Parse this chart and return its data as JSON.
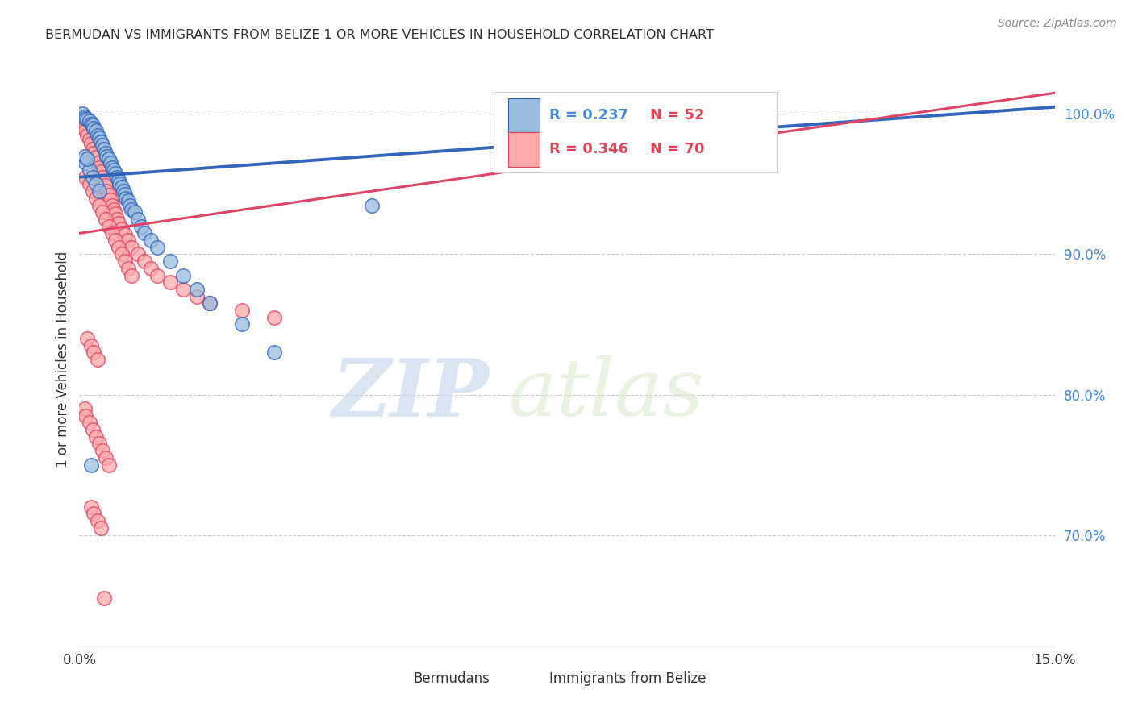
{
  "title": "BERMUDAN VS IMMIGRANTS FROM BELIZE 1 OR MORE VEHICLES IN HOUSEHOLD CORRELATION CHART",
  "source": "Source: ZipAtlas.com",
  "ylabel": "1 or more Vehicles in Household",
  "xmin": 0.0,
  "xmax": 15.0,
  "ymin": 62.0,
  "ymax": 103.0,
  "ytick_vals": [
    70.0,
    80.0,
    90.0,
    100.0
  ],
  "legend_labels": [
    "Bermudans",
    "Immigrants from Belize"
  ],
  "blue_color": "#99BBDD",
  "pink_color": "#FFAAAA",
  "blue_line_color": "#3366BB",
  "pink_line_color": "#DD4466",
  "watermark_zip": "ZIP",
  "watermark_atlas": "atlas",
  "blue_line_x": [
    0.0,
    15.0
  ],
  "blue_line_y": [
    95.5,
    100.5
  ],
  "pink_line_x": [
    0.0,
    15.0
  ],
  "pink_line_y": [
    91.5,
    101.5
  ],
  "blue_scatter_x": [
    0.05,
    0.08,
    0.1,
    0.12,
    0.15,
    0.18,
    0.2,
    0.22,
    0.25,
    0.28,
    0.3,
    0.33,
    0.35,
    0.38,
    0.4,
    0.42,
    0.45,
    0.48,
    0.5,
    0.53,
    0.55,
    0.58,
    0.6,
    0.62,
    0.65,
    0.68,
    0.7,
    0.72,
    0.75,
    0.78,
    0.8,
    0.85,
    0.9,
    0.95,
    1.0,
    1.1,
    1.2,
    1.4,
    1.6,
    1.8,
    2.0,
    2.5,
    3.0,
    4.5,
    0.1,
    0.15,
    0.2,
    0.25,
    0.3,
    0.08,
    0.12,
    0.18
  ],
  "blue_scatter_y": [
    100.0,
    99.8,
    99.7,
    99.6,
    99.5,
    99.3,
    99.2,
    99.0,
    98.8,
    98.5,
    98.3,
    98.0,
    97.8,
    97.5,
    97.2,
    97.0,
    96.8,
    96.5,
    96.2,
    96.0,
    95.8,
    95.5,
    95.3,
    95.0,
    94.8,
    94.5,
    94.3,
    94.0,
    93.8,
    93.5,
    93.2,
    93.0,
    92.5,
    92.0,
    91.5,
    91.0,
    90.5,
    89.5,
    88.5,
    87.5,
    86.5,
    85.0,
    83.0,
    93.5,
    96.5,
    96.0,
    95.5,
    95.0,
    94.5,
    97.0,
    96.8,
    75.0
  ],
  "pink_scatter_x": [
    0.05,
    0.08,
    0.1,
    0.12,
    0.15,
    0.18,
    0.2,
    0.22,
    0.25,
    0.28,
    0.3,
    0.33,
    0.35,
    0.38,
    0.4,
    0.42,
    0.45,
    0.48,
    0.5,
    0.53,
    0.55,
    0.58,
    0.6,
    0.65,
    0.7,
    0.75,
    0.8,
    0.9,
    1.0,
    1.1,
    1.2,
    1.4,
    1.6,
    1.8,
    2.0,
    2.5,
    3.0,
    0.1,
    0.15,
    0.2,
    0.25,
    0.3,
    0.35,
    0.4,
    0.45,
    0.5,
    0.55,
    0.6,
    0.65,
    0.7,
    0.75,
    0.8,
    0.12,
    0.18,
    0.22,
    0.28,
    0.08,
    0.1,
    0.15,
    0.2,
    0.25,
    0.3,
    0.35,
    0.4,
    0.45,
    0.18,
    0.22,
    0.28,
    0.33,
    0.38
  ],
  "pink_scatter_y": [
    99.2,
    99.0,
    98.8,
    98.5,
    98.2,
    97.9,
    97.5,
    97.2,
    96.9,
    96.5,
    96.2,
    95.9,
    95.5,
    95.2,
    94.9,
    94.5,
    94.2,
    93.9,
    93.5,
    93.2,
    92.9,
    92.5,
    92.2,
    91.8,
    91.4,
    91.0,
    90.5,
    90.0,
    89.5,
    89.0,
    88.5,
    88.0,
    87.5,
    87.0,
    86.5,
    86.0,
    85.5,
    95.5,
    95.0,
    94.5,
    94.0,
    93.5,
    93.0,
    92.5,
    92.0,
    91.5,
    91.0,
    90.5,
    90.0,
    89.5,
    89.0,
    88.5,
    84.0,
    83.5,
    83.0,
    82.5,
    79.0,
    78.5,
    78.0,
    77.5,
    77.0,
    76.5,
    76.0,
    75.5,
    75.0,
    72.0,
    71.5,
    71.0,
    70.5,
    65.5
  ]
}
